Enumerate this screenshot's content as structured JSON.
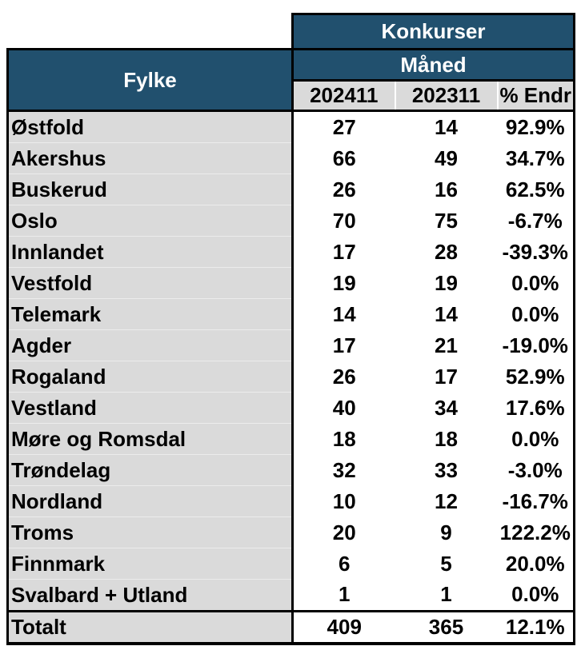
{
  "chart_data": {
    "type": "table",
    "title": "Konkurser",
    "group_header": "Måned",
    "row_header_label": "Fylke",
    "columns": [
      "202411",
      "202311",
      "% Endr"
    ],
    "rows": [
      {
        "fylke": "Østfold",
        "v202411": "27",
        "v202311": "14",
        "pct_endr": "92.9%"
      },
      {
        "fylke": "Akershus",
        "v202411": "66",
        "v202311": "49",
        "pct_endr": "34.7%"
      },
      {
        "fylke": "Buskerud",
        "v202411": "26",
        "v202311": "16",
        "pct_endr": "62.5%"
      },
      {
        "fylke": "Oslo",
        "v202411": "70",
        "v202311": "75",
        "pct_endr": "-6.7%"
      },
      {
        "fylke": "Innlandet",
        "v202411": "17",
        "v202311": "28",
        "pct_endr": "-39.3%"
      },
      {
        "fylke": "Vestfold",
        "v202411": "19",
        "v202311": "19",
        "pct_endr": "0.0%"
      },
      {
        "fylke": "Telemark",
        "v202411": "14",
        "v202311": "14",
        "pct_endr": "0.0%"
      },
      {
        "fylke": "Agder",
        "v202411": "17",
        "v202311": "21",
        "pct_endr": "-19.0%"
      },
      {
        "fylke": "Rogaland",
        "v202411": "26",
        "v202311": "17",
        "pct_endr": "52.9%"
      },
      {
        "fylke": "Vestland",
        "v202411": "40",
        "v202311": "34",
        "pct_endr": "17.6%"
      },
      {
        "fylke": "Møre og Romsdal",
        "v202411": "18",
        "v202311": "18",
        "pct_endr": "0.0%"
      },
      {
        "fylke": "Trøndelag",
        "v202411": "32",
        "v202311": "33",
        "pct_endr": "-3.0%"
      },
      {
        "fylke": "Nordland",
        "v202411": "10",
        "v202311": "12",
        "pct_endr": "-16.7%"
      },
      {
        "fylke": "Troms",
        "v202411": "20",
        "v202311": "9",
        "pct_endr": "122.2%"
      },
      {
        "fylke": "Finnmark",
        "v202411": "6",
        "v202311": "5",
        "pct_endr": "20.0%"
      },
      {
        "fylke": "Svalbard + Utland",
        "v202411": "1",
        "v202311": "1",
        "pct_endr": "0.0%"
      }
    ],
    "total_row": {
      "fylke": "Totalt",
      "v202411": "409",
      "v202311": "365",
      "pct_endr": "12.1%"
    }
  },
  "colors": {
    "header_blue": "#21506E",
    "header_text": "#FFFFFF",
    "label_column_gray": "#DADADA",
    "border_black": "#000000",
    "body_text": "#000000",
    "data_cell_white": "#FFFFFF"
  }
}
